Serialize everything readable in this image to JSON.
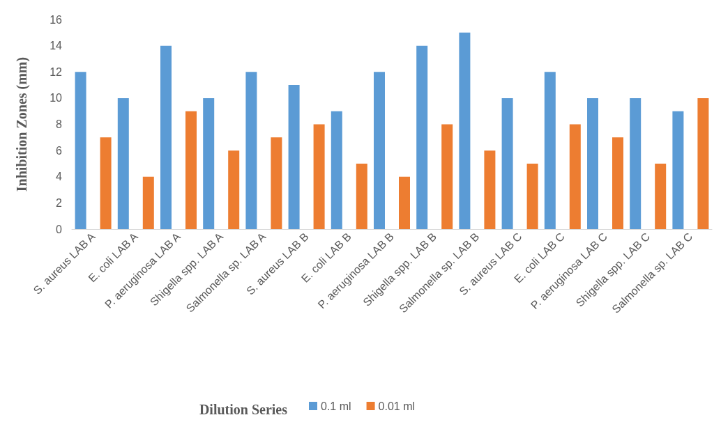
{
  "chart_data": {
    "type": "bar",
    "ylabel": "Inhibition Zones (mm)",
    "legend_title": "Dilution Series",
    "categories": [
      "S. aureus LAB A",
      "E. coli LAB A",
      "P. aeruginosa LAB A",
      "Shigella spp. LAB A",
      "Salmonella sp. LAB A",
      "S. aureus LAB B",
      "E. coli LAB B",
      "P. aeruginosa LAB B",
      "Shigella spp. LAB B",
      "Salmonella sp. LAB B",
      "S. aureus LAB C",
      "E. coli LAB C",
      "P. aeruginosa LAB C",
      "Shigella spp. LAB C",
      "Salmonella sp. LAB C"
    ],
    "series": [
      {
        "name": "0.1 ml",
        "color": "#5b9bd5",
        "values": [
          12,
          10,
          14,
          10,
          12,
          11,
          9,
          12,
          14,
          15,
          10,
          12,
          10,
          10,
          9
        ]
      },
      {
        "name": "0.01 ml",
        "color": "#ed7d31",
        "values": [
          7,
          4,
          9,
          6,
          7,
          8,
          5,
          4,
          8,
          6,
          5,
          8,
          7,
          5,
          10
        ]
      }
    ],
    "ylim": [
      0,
      16
    ],
    "yticks": [
      0,
      2,
      4,
      6,
      8,
      10,
      12,
      14,
      16
    ],
    "grid": false,
    "legend": "bottom"
  }
}
